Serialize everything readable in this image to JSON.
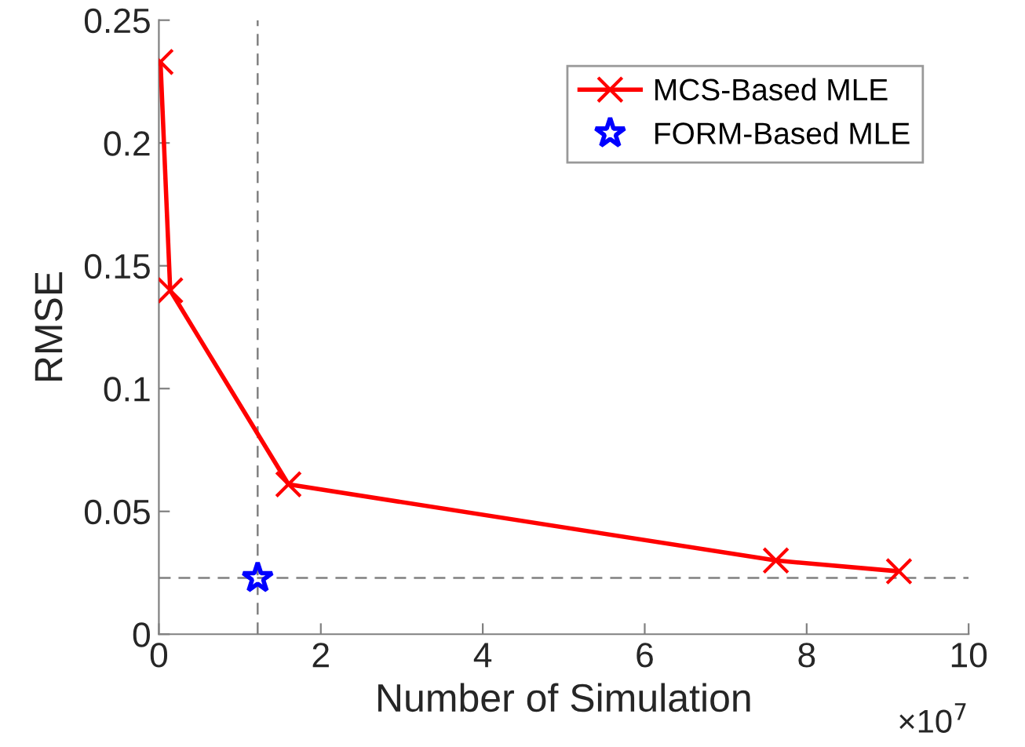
{
  "chart_data": {
    "type": "line",
    "xlabel": "Number of Simulation",
    "ylabel": "RMSE",
    "series": [
      {
        "name": "MCS-Based MLE",
        "color": "#ff0000",
        "marker": "cross",
        "x": [
          0.02,
          0.14,
          1.6,
          7.62,
          9.14
        ],
        "values": [
          0.233,
          0.14,
          0.061,
          0.03,
          0.0256
        ]
      },
      {
        "name": "FORM-Based MLE",
        "color": "#0000ff",
        "type": "scatter",
        "marker": "star",
        "x": [
          1.22
        ],
        "values": [
          0.0229
        ]
      }
    ],
    "ref_lines": [
      {
        "axis": "x",
        "value": 1.22,
        "color": "#808080",
        "line_style": "dashed"
      },
      {
        "axis": "y",
        "value": 0.0229,
        "color": "#808080",
        "line_style": "dashed"
      }
    ],
    "xlim": [
      0,
      10
    ],
    "xticks": [
      0,
      2,
      4,
      6,
      8,
      10
    ],
    "ylim": [
      0,
      0.25
    ],
    "yticks": [
      0,
      0.05,
      0.1,
      0.15,
      0.2,
      0.25
    ],
    "annotations": [
      "×10$^{7}$"
    ],
    "legend": "top right",
    "grid": false
  }
}
